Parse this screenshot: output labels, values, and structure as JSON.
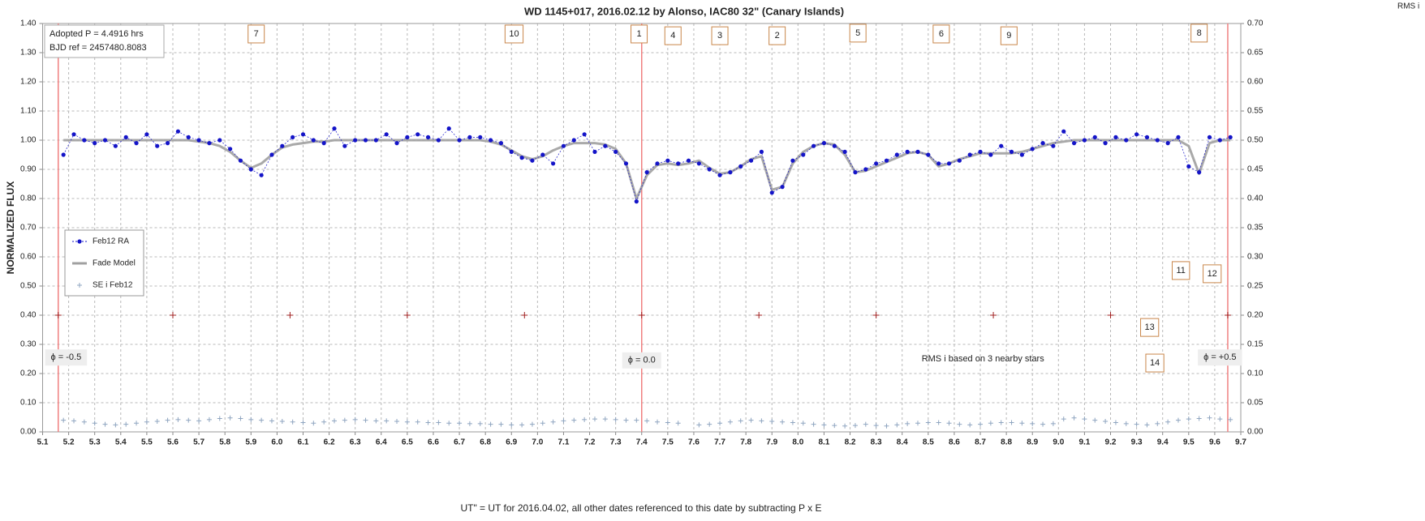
{
  "chart_data": {
    "type": "scatter",
    "title": "WD 1145+017,  2016.02.12  by Alonso, IAC80  32\" (Canary Islands)",
    "xlabel": "UT\"  = UT for 2016.04.02, all other dates referenced  to this date by subtracting  P x E",
    "ylabel": "NORMALIZED  FLUX",
    "y2label": "RMS i",
    "info": [
      "Adopted P = 4.4916  hrs",
      "BJD ref = 2457480.8083"
    ],
    "xlim": [
      5.1,
      9.7
    ],
    "ylim": [
      0,
      1.4
    ],
    "y2lim": [
      0,
      0.7
    ],
    "grid": true,
    "legend": "left",
    "xticks": [
      5.1,
      5.2,
      5.3,
      5.4,
      5.5,
      5.6,
      5.7,
      5.8,
      5.9,
      {
        "value": 6,
        "label": "6.0"
      },
      6.1,
      6.2,
      6.3,
      6.4,
      6.5,
      6.6,
      6.7,
      6.8,
      6.9,
      {
        "value": 7,
        "label": "7.0"
      },
      7.1,
      7.2,
      7.3,
      7.4,
      7.5,
      7.6,
      7.7,
      7.8,
      7.9,
      {
        "value": 8,
        "label": "8.0"
      },
      8.1,
      8.2,
      8.3,
      8.4,
      8.5,
      8.6,
      8.7,
      8.8,
      8.9,
      {
        "value": 9,
        "label": "9.0"
      },
      9.1,
      9.2,
      9.3,
      9.4,
      9.5,
      9.6,
      9.7
    ],
    "yticks": [
      {
        "value": 0,
        "label": "0.00"
      },
      {
        "value": 0.1,
        "label": "0.10"
      },
      {
        "value": 0.2,
        "label": "0.20"
      },
      {
        "value": 0.3,
        "label": "0.30"
      },
      {
        "value": 0.4,
        "label": "0.40"
      },
      {
        "value": 0.5,
        "label": "0.50"
      },
      {
        "value": 0.6,
        "label": "0.60"
      },
      {
        "value": 0.7,
        "label": "0.70"
      },
      {
        "value": 0.8,
        "label": "0.80"
      },
      {
        "value": 0.9,
        "label": "0.90"
      },
      {
        "value": 1,
        "label": "1.00"
      },
      {
        "value": 1.1,
        "label": "1.10"
      },
      {
        "value": 1.2,
        "label": "1.20"
      },
      {
        "value": 1.3,
        "label": "1.30"
      },
      {
        "value": 1.4,
        "label": "1.40"
      }
    ],
    "y2ticks": [
      {
        "value": 0,
        "label": "0.00"
      },
      {
        "value": 0.05,
        "label": "0.05"
      },
      {
        "value": 0.1,
        "label": "0.10"
      },
      {
        "value": 0.15,
        "label": "0.15"
      },
      {
        "value": 0.2,
        "label": "0.20"
      },
      {
        "value": 0.25,
        "label": "0.25"
      },
      {
        "value": 0.3,
        "label": "0.30"
      },
      {
        "value": 0.35,
        "label": "0.35"
      },
      {
        "value": 0.4,
        "label": "0.40"
      },
      {
        "value": 0.45,
        "label": "0.45"
      },
      {
        "value": 0.5,
        "label": "0.50"
      },
      {
        "value": 0.55,
        "label": "0.55"
      },
      {
        "value": 0.6,
        "label": "0.60"
      },
      {
        "value": 0.65,
        "label": "0.65"
      },
      {
        "value": 0.7,
        "label": "0.70"
      }
    ],
    "x": [
      5.18,
      5.22,
      5.26,
      5.3,
      5.34,
      5.38,
      5.42,
      5.46,
      5.5,
      5.54,
      5.58,
      5.62,
      5.66,
      5.7,
      5.74,
      5.78,
      5.82,
      5.86,
      5.9,
      5.94,
      5.98,
      6.02,
      6.06,
      6.1,
      6.14,
      6.18,
      6.22,
      6.26,
      6.3,
      6.34,
      6.38,
      6.42,
      6.46,
      6.5,
      6.54,
      6.58,
      6.62,
      6.66,
      6.7,
      6.74,
      6.78,
      6.82,
      6.86,
      6.9,
      6.94,
      6.98,
      7.02,
      7.06,
      7.1,
      7.14,
      7.18,
      7.22,
      7.26,
      7.3,
      7.34,
      7.38,
      7.42,
      7.46,
      7.5,
      7.54,
      7.58,
      7.62,
      7.66,
      7.7,
      7.74,
      7.78,
      7.82,
      7.86,
      7.9,
      7.94,
      7.98,
      8.02,
      8.06,
      8.1,
      8.14,
      8.18,
      8.22,
      8.26,
      8.3,
      8.34,
      8.38,
      8.42,
      8.46,
      8.5,
      8.54,
      8.58,
      8.62,
      8.66,
      8.7,
      8.74,
      8.78,
      8.82,
      8.86,
      8.9,
      8.94,
      8.98,
      9.02,
      9.06,
      9.1,
      9.14,
      9.18,
      9.22,
      9.26,
      9.3,
      9.34,
      9.38,
      9.42,
      9.46,
      9.5,
      9.54,
      9.58,
      9.62,
      9.66
    ],
    "series": [
      {
        "name": "Feb12 RA",
        "kind": "points",
        "color": "#1414c8",
        "values": [
          0.95,
          1.02,
          1.0,
          0.99,
          1.0,
          0.98,
          1.01,
          0.99,
          1.02,
          0.98,
          0.99,
          1.03,
          1.01,
          1.0,
          0.99,
          1.0,
          0.97,
          0.93,
          0.9,
          0.88,
          0.95,
          0.98,
          1.01,
          1.02,
          1.0,
          0.99,
          1.04,
          0.98,
          1.0,
          1.0,
          1.0,
          1.02,
          0.99,
          1.01,
          1.02,
          1.01,
          1.0,
          1.04,
          1.0,
          1.01,
          1.01,
          1.0,
          0.99,
          0.96,
          0.94,
          0.93,
          0.95,
          0.92,
          0.98,
          1.0,
          1.02,
          0.96,
          0.98,
          0.96,
          0.92,
          0.79,
          0.89,
          0.92,
          0.93,
          0.92,
          0.93,
          0.92,
          0.9,
          0.88,
          0.89,
          0.91,
          0.93,
          0.96,
          0.82,
          0.84,
          0.93,
          0.95,
          0.98,
          0.99,
          0.98,
          0.96,
          0.89,
          0.9,
          0.92,
          0.93,
          0.95,
          0.96,
          0.96,
          0.95,
          0.92,
          0.92,
          0.93,
          0.95,
          0.96,
          0.95,
          0.98,
          0.96,
          0.95,
          0.97,
          0.99,
          0.98,
          1.03,
          0.99,
          1.0,
          1.01,
          0.99,
          1.01,
          1.0,
          1.02,
          1.01,
          1.0,
          0.99,
          1.01,
          0.91,
          0.89,
          1.01,
          1.0,
          1.01
        ]
      },
      {
        "name": "Fade Model",
        "kind": "model",
        "color": "#a0a0a0",
        "values": [
          1,
          1,
          1,
          1,
          1,
          1,
          1,
          1,
          1,
          1,
          1,
          1,
          1,
          0.995,
          0.99,
          0.98,
          0.96,
          0.93,
          0.905,
          0.92,
          0.95,
          0.975,
          0.985,
          0.99,
          0.995,
          0.995,
          1,
          1,
          1,
          1,
          1,
          1,
          1,
          1,
          1,
          1,
          1,
          1,
          1,
          1,
          1,
          0.995,
          0.985,
          0.965,
          0.945,
          0.935,
          0.945,
          0.965,
          0.98,
          0.99,
          0.99,
          0.99,
          0.985,
          0.97,
          0.92,
          0.8,
          0.88,
          0.915,
          0.92,
          0.915,
          0.92,
          0.93,
          0.905,
          0.885,
          0.89,
          0.91,
          0.935,
          0.945,
          0.83,
          0.84,
          0.92,
          0.96,
          0.98,
          0.99,
          0.985,
          0.95,
          0.89,
          0.895,
          0.91,
          0.925,
          0.94,
          0.955,
          0.96,
          0.95,
          0.91,
          0.92,
          0.935,
          0.945,
          0.955,
          0.955,
          0.955,
          0.955,
          0.96,
          0.97,
          0.98,
          0.99,
          0.995,
          1,
          1,
          1,
          1,
          1,
          1,
          1,
          1,
          1,
          1,
          1,
          0.98,
          0.885,
          0.99,
          1,
          1
        ]
      },
      {
        "name": "SE i Feb12",
        "kind": "cross",
        "color": "#8fa5c0",
        "axis": "y2",
        "values": [
          0.02,
          0.019,
          0.017,
          0.015,
          0.013,
          0.012,
          0.013,
          0.015,
          0.017,
          0.018,
          0.02,
          0.021,
          0.02,
          0.019,
          0.021,
          0.023,
          0.024,
          0.023,
          0.021,
          0.02,
          0.019,
          0.018,
          0.017,
          0.016,
          0.015,
          0.017,
          0.019,
          0.02,
          0.021,
          0.02,
          0.019,
          0.019,
          0.018,
          0.017,
          0.017,
          0.016,
          0.016,
          0.015,
          0.015,
          0.014,
          0.014,
          0.013,
          0.013,
          0.012,
          0.012,
          0.013,
          0.015,
          0.017,
          0.019,
          0.02,
          0.021,
          0.022,
          0.022,
          0.021,
          0.02,
          0.02,
          0.019,
          0.017,
          0.016,
          0.015,
          null,
          0.012,
          0.013,
          0.015,
          0.017,
          0.019,
          0.02,
          0.019,
          0.018,
          0.017,
          0.016,
          0.015,
          0.013,
          0.012,
          0.011,
          0.01,
          0.011,
          0.013,
          0.011,
          0.01,
          0.012,
          0.014,
          0.015,
          0.016,
          0.016,
          0.015,
          0.013,
          0.012,
          0.013,
          0.015,
          0.016,
          0.016,
          0.015,
          0.014,
          0.013,
          0.014,
          0.022,
          0.024,
          0.022,
          0.02,
          0.018,
          0.016,
          0.014,
          0.013,
          0.012,
          0.014,
          0.017,
          0.02,
          0.022,
          0.023,
          0.024,
          0.022,
          0.021
        ]
      }
    ],
    "phase_lines": {
      "x": [
        5.16,
        7.4,
        9.65
      ],
      "color": "#f08080"
    },
    "phase_marks": {
      "x": [
        5.16,
        5.6,
        6.05,
        6.5,
        6.95,
        7.4,
        7.85,
        8.3,
        8.75,
        9.2,
        9.65
      ],
      "y": [
        0.4,
        0.4,
        0.4,
        0.4,
        0.4,
        0.4,
        0.4,
        0.4,
        0.4,
        0.4,
        0.4
      ],
      "color": "#a02020"
    },
    "annotations": [
      {
        "text": "7",
        "x": 5.92,
        "y": 1.364,
        "box": "orange"
      },
      {
        "text": "10",
        "x": 6.91,
        "y": 1.364,
        "box": "orange"
      },
      {
        "text": "1",
        "x": 7.39,
        "y": 1.364,
        "box": "orange"
      },
      {
        "text": "4",
        "x": 7.52,
        "y": 1.358,
        "box": "orange"
      },
      {
        "text": "3",
        "x": 7.7,
        "y": 1.358,
        "box": "orange"
      },
      {
        "text": "2",
        "x": 7.92,
        "y": 1.358,
        "box": "orange"
      },
      {
        "text": "5",
        "x": 8.23,
        "y": 1.367,
        "box": "orange"
      },
      {
        "text": "6",
        "x": 8.55,
        "y": 1.364,
        "box": "orange"
      },
      {
        "text": "9",
        "x": 8.81,
        "y": 1.358,
        "box": "orange"
      },
      {
        "text": "8",
        "x": 9.54,
        "y": 1.367,
        "box": "orange"
      },
      {
        "text": "11",
        "x": 9.47,
        "y": 0.553,
        "box": "orange"
      },
      {
        "text": "12",
        "x": 9.59,
        "y": 0.542,
        "box": "orange"
      },
      {
        "text": "13",
        "x": 9.35,
        "y": 0.358,
        "box": "orange"
      },
      {
        "text": "14",
        "x": 9.37,
        "y": 0.236,
        "box": "orange"
      },
      {
        "text": "ϕ = -0.5",
        "x": 5.19,
        "y": 0.255,
        "box": "gray"
      },
      {
        "text": "ϕ = 0.0",
        "x": 7.4,
        "y": 0.245,
        "box": "gray"
      },
      {
        "text": "ϕ = +0.5",
        "x": 9.62,
        "y": 0.255,
        "box": "gray"
      },
      {
        "text": "RMS i based on 3 nearby stars",
        "x": 8.71,
        "y": 0.25,
        "box": "none"
      }
    ]
  }
}
